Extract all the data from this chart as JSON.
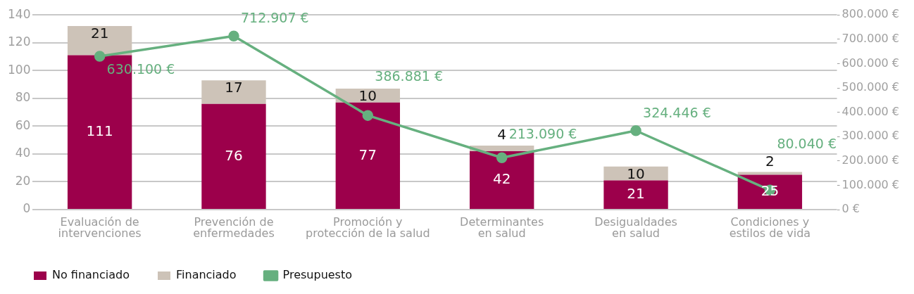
{
  "chart_data": {
    "type": "bar",
    "stacked": true,
    "categories": [
      "Evaluación de intervenciones",
      "Prevención de enfermedades",
      "Promoción y protección de la salud",
      "Determinantes en salud",
      "Desigualdades en salud",
      "Condiciones y estilos de vida"
    ],
    "series": [
      {
        "name": "No financiado",
        "color": "#9c004b",
        "values": [
          111,
          76,
          77,
          42,
          21,
          25
        ]
      },
      {
        "name": "Financiado",
        "color": "#cdc3b8",
        "values": [
          21,
          17,
          10,
          4,
          10,
          2
        ]
      },
      {
        "name": "Presupuesto",
        "type": "line",
        "axis": "y2",
        "color": "#66b07f",
        "values": [
          630100,
          712907,
          386881,
          213090,
          324446,
          80040
        ],
        "value_labels": [
          "630.100 €",
          "712.907 €",
          "386.881 €",
          "213.090 €",
          "324.446 €",
          "80.040 €"
        ]
      }
    ],
    "ylim": [
      0,
      140
    ],
    "yticks": [
      0,
      20,
      40,
      60,
      80,
      100,
      120,
      140
    ],
    "y2lim": [
      0,
      800000
    ],
    "y2ticks": [
      {
        "value": 0,
        "label": "0 €"
      },
      {
        "value": 100000,
        "label": "100.000 €"
      },
      {
        "value": 200000,
        "label": "200.000 €"
      },
      {
        "value": 300000,
        "label": "300.000 €"
      },
      {
        "value": 400000,
        "label": "400.000 €"
      },
      {
        "value": 500000,
        "label": "500.000 €"
      },
      {
        "value": 600000,
        "label": "600.000 €"
      },
      {
        "value": 700000,
        "label": "700.000 €"
      },
      {
        "value": 800000,
        "label": "800.000 €"
      }
    ],
    "data_labels": true,
    "grid": "y",
    "legend": "bottom left",
    "marker": "circle"
  }
}
